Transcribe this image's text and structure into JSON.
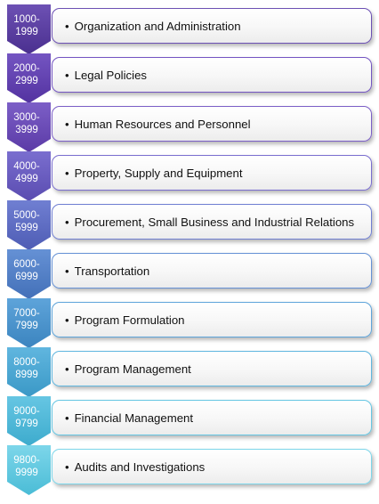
{
  "rows": [
    {
      "start": "1000-",
      "end": "1999",
      "label": "Organization and Administration",
      "color": "#4a2f8f",
      "light": "#6d51b4"
    },
    {
      "start": "2000-",
      "end": "2999",
      "label": "Legal Policies",
      "color": "#5332a0",
      "light": "#7455c2"
    },
    {
      "start": "3000-",
      "end": "3999",
      "label": "Human Resources and Personnel",
      "color": "#5b3aa6",
      "light": "#7c5fc7"
    },
    {
      "start": "4000-",
      "end": "4999",
      "label": "Property, Supply and Equipment",
      "color": "#5a4cb0",
      "light": "#7a6ecf"
    },
    {
      "start": "5000-",
      "end": "5999",
      "label": "Procurement, Small Business and Industrial Relations",
      "color": "#4e5cb4",
      "light": "#707fd2"
    },
    {
      "start": "6000-",
      "end": "6999",
      "label": "Transportation",
      "color": "#4370b8",
      "light": "#6591d5"
    },
    {
      "start": "7000-",
      "end": "7999",
      "label": "Program Formulation",
      "color": "#3b84bf",
      "light": "#5ea4da"
    },
    {
      "start": "8000-",
      "end": "8999",
      "label": "Program Management",
      "color": "#3a98c6",
      "light": "#60b6df"
    },
    {
      "start": "9000-",
      "end": "9799",
      "label": "Financial Management",
      "color": "#3dabcd",
      "light": "#66c6e3"
    },
    {
      "start": "9800-",
      "end": "9999",
      "label": "Audits and Investigations",
      "color": "#4abcd6",
      "light": "#7dd6ea"
    }
  ]
}
